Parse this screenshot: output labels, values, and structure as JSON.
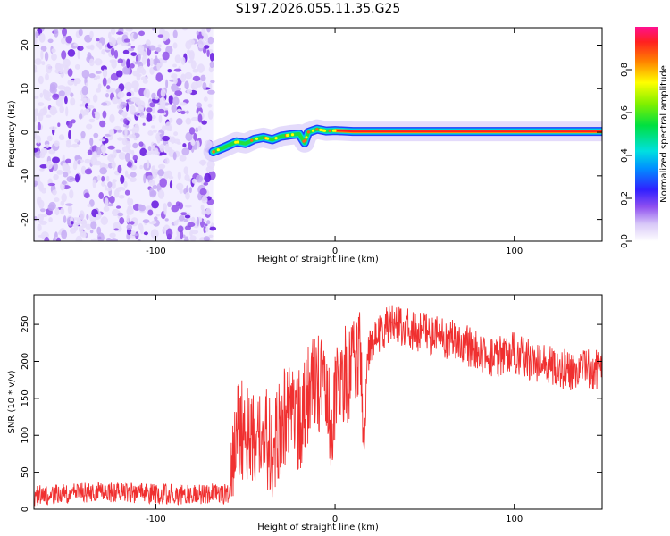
{
  "title": "S197.2026.055.11.35.G25",
  "chart_data": [
    {
      "type": "heatmap",
      "name": "spectrogram",
      "xlabel": "Height of straight line (km)",
      "ylabel": "Frequency (Hz)",
      "xlim": [
        -168,
        149
      ],
      "ylim": [
        -25,
        24
      ],
      "xticks": [
        -100,
        0,
        100
      ],
      "xtick_labels": [
        "-100",
        "0",
        "100"
      ],
      "yticks": [
        -20,
        -10,
        0,
        10,
        20
      ],
      "ytick_labels": [
        "-20",
        "-10",
        "0",
        "10",
        "20"
      ],
      "noise_region_x": [
        -168,
        -68
      ],
      "carrier_line": [
        [
          -68,
          -4.5
        ],
        [
          -62,
          -3.5
        ],
        [
          -55,
          -2.2
        ],
        [
          -50,
          -2.6
        ],
        [
          -45,
          -1.6
        ],
        [
          -40,
          -1.2
        ],
        [
          -35,
          -1.7
        ],
        [
          -30,
          -0.9
        ],
        [
          -25,
          -0.6
        ],
        [
          -20,
          -0.4
        ],
        [
          -17,
          -2.4
        ],
        [
          -15,
          0.0
        ],
        [
          -10,
          0.7
        ],
        [
          -5,
          0.3
        ],
        [
          0,
          0.4
        ],
        [
          10,
          0.2
        ],
        [
          20,
          0.2
        ],
        [
          149,
          0.2
        ]
      ],
      "colorbar": {
        "label": "Normalized spectral amplitude",
        "range": [
          0,
          1
        ],
        "ticks": [
          0.0,
          0.2,
          0.4,
          0.6,
          0.8
        ],
        "tick_labels": [
          "0.0",
          "0.2",
          "0.4",
          "0.6",
          "0.8"
        ]
      }
    },
    {
      "type": "line",
      "name": "snr",
      "xlabel": "Height of straight line (km)",
      "ylabel": "SNR (10 * v/v)",
      "xlim": [
        -168,
        149
      ],
      "ylim": [
        0,
        290
      ],
      "xticks": [
        -100,
        0,
        100
      ],
      "xtick_labels": [
        "-100",
        "0",
        "100"
      ],
      "yticks": [
        0,
        50,
        100,
        150,
        200,
        250
      ],
      "ytick_labels": [
        "0",
        "50",
        "100",
        "150",
        "200",
        "250"
      ],
      "color": "#f03030",
      "x": [
        -168,
        -150,
        -130,
        -110,
        -90,
        -70,
        -58,
        -56,
        -50,
        -45,
        -40,
        -35,
        -30,
        -25,
        -20,
        -15,
        -10,
        -5,
        -3,
        -1,
        0,
        5,
        10,
        14,
        16,
        18,
        20,
        25,
        30,
        40,
        50,
        60,
        70,
        80,
        90,
        100,
        110,
        120,
        130,
        140,
        149
      ],
      "y": [
        18,
        20,
        24,
        22,
        20,
        21,
        20,
        100,
        110,
        95,
        105,
        80,
        115,
        130,
        120,
        150,
        175,
        170,
        135,
        95,
        150,
        180,
        195,
        210,
        80,
        200,
        225,
        240,
        250,
        245,
        238,
        232,
        225,
        215,
        205,
        212,
        200,
        195,
        188,
        190,
        188
      ]
    }
  ]
}
